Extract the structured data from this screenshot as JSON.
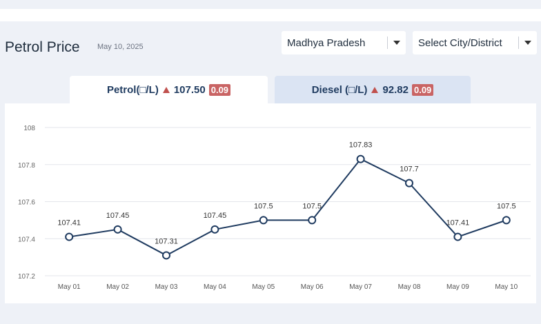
{
  "header": {
    "title": "Petrol Price",
    "date": "May 10, 2025",
    "state_select": "Madhya Pradesh",
    "city_select": "Select City/District"
  },
  "tabs": [
    {
      "name": "Petrol(□/L)",
      "price": "107.50",
      "change": "0.09"
    },
    {
      "name": "Diesel (□/L)",
      "price": "92.82",
      "change": "0.09"
    }
  ],
  "colors": {
    "line": "#1e3a5f",
    "badge": "#c96464",
    "up_arrow": "#c0504d",
    "active_tab": "#ffffff",
    "inactive_tab": "#dbe4f3"
  },
  "chart_data": {
    "type": "line",
    "categories": [
      "May 01",
      "May 02",
      "May 03",
      "May 04",
      "May 05",
      "May 06",
      "May 07",
      "May 08",
      "May 09",
      "May 10"
    ],
    "series": [
      {
        "values": [
          107.41,
          107.45,
          107.31,
          107.45,
          107.5,
          107.5,
          107.83,
          107.7,
          107.41,
          107.5
        ]
      }
    ],
    "data_labels": [
      "107.41",
      "107.45",
      "107.31",
      "107.45",
      "107.5",
      "107.5",
      "107.83",
      "107.7",
      "107.41",
      "107.5"
    ],
    "y_ticks": [
      "108",
      "107.8",
      "107.6",
      "107.4",
      "107.2"
    ],
    "ylim": [
      107.2,
      108
    ],
    "grid": true,
    "title": "",
    "xlabel": "",
    "ylabel": ""
  }
}
